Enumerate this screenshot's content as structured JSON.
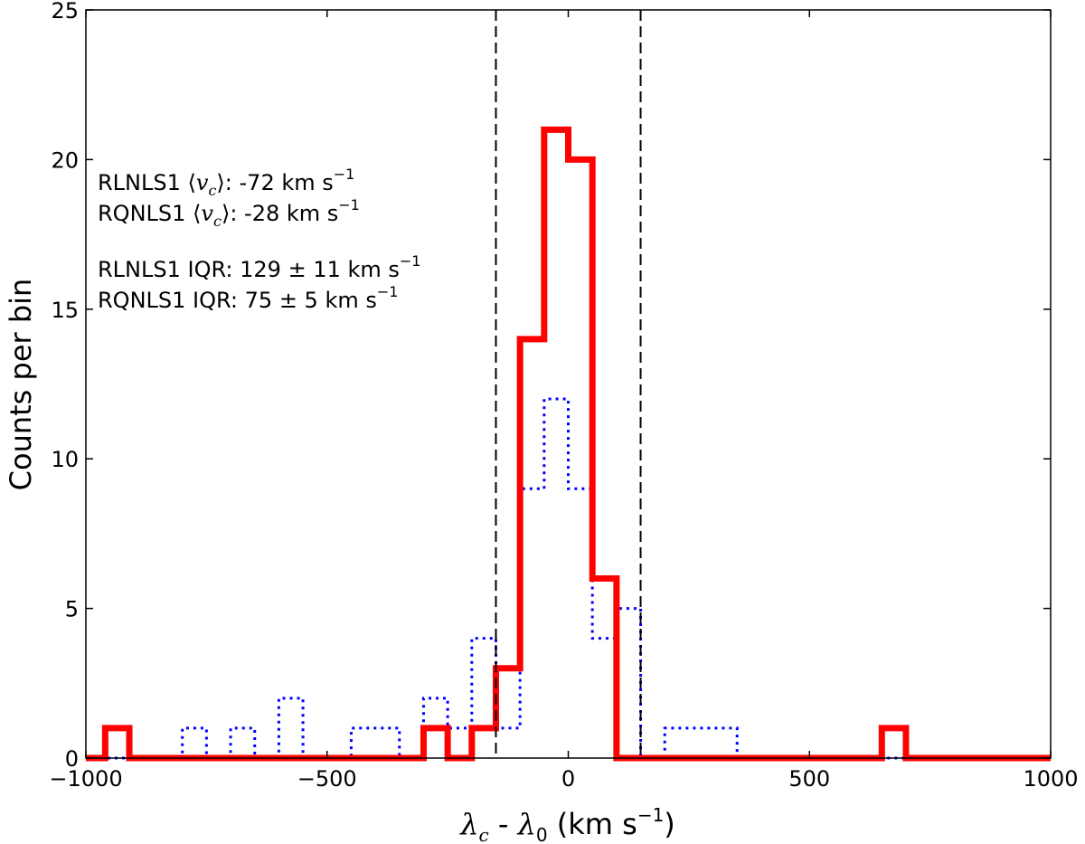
{
  "chart_data": {
    "type": "histogram",
    "title": "",
    "xlabel": {
      "sym": "λ",
      "sub1": "c",
      "mid": " - ",
      "sym2": "λ",
      "sub2": "0",
      "unit": " (km s",
      "exp": "−1",
      "close": ")"
    },
    "ylabel": "Counts per bin",
    "xlim": [
      -1000,
      1000
    ],
    "ylim": [
      0,
      25
    ],
    "xticks": [
      -1000,
      -500,
      0,
      500,
      1000
    ],
    "xtick_labels": [
      "−1000",
      "−500",
      "0",
      "500",
      "1000"
    ],
    "yticks": [
      0,
      5,
      10,
      15,
      20,
      25
    ],
    "ytick_labels": [
      "0",
      "5",
      "10",
      "15",
      "20",
      "25"
    ],
    "bin_edges": [
      -1000,
      -950,
      -900,
      -850,
      -800,
      -750,
      -700,
      -650,
      -600,
      -550,
      -500,
      -450,
      -400,
      -350,
      -300,
      -250,
      -200,
      -150,
      -100,
      -50,
      0,
      50,
      100,
      150,
      200,
      250,
      300,
      350,
      400,
      450,
      500,
      550,
      600,
      650,
      700,
      750,
      800,
      850,
      900,
      950,
      1000
    ],
    "series": [
      {
        "name": "RLNLS1",
        "style": "solid",
        "color": "#ff0000",
        "edges": [
          -1000,
          -960,
          -910,
          -300,
          -250,
          -200,
          -150,
          -100,
          -50,
          0,
          50,
          100,
          650,
          700,
          1000
        ],
        "values": [
          0,
          1,
          0,
          1,
          0,
          1,
          3,
          14,
          21,
          20,
          6,
          0,
          1,
          0
        ]
      },
      {
        "name": "RQNLS1",
        "style": "dotted",
        "color": "#0000ff",
        "edges": [
          -1000,
          -800,
          -750,
          -700,
          -650,
          -600,
          -550,
          -450,
          -350,
          -300,
          -250,
          -200,
          -150,
          -100,
          -50,
          0,
          50,
          100,
          150,
          200,
          350,
          1000
        ],
        "values": [
          0,
          1,
          0,
          1,
          0,
          2,
          0,
          1,
          0,
          2,
          1,
          4,
          1,
          9,
          12,
          9,
          4,
          5,
          0,
          1,
          0
        ]
      }
    ],
    "vlines": [
      -150,
      150
    ],
    "vline_color": "#000000",
    "annotations": [
      {
        "prefix": "RLNLS1 ",
        "sym": "v",
        "sub": "c",
        "suffix": ": -72 km s",
        "exp": "−1"
      },
      {
        "prefix": "RQNLS1 ",
        "sym": "v",
        "sub": "c",
        "suffix": ": -28 km s",
        "exp": "−1"
      },
      {
        "prefix": "RLNLS1 IQR: 129 ",
        "pm": "±",
        "suffix": " 11 km s",
        "exp": "−1"
      },
      {
        "prefix": "RQNLS1 IQR: 75 ",
        "pm": "±",
        "suffix": " 5 km s",
        "exp": "−1"
      }
    ]
  }
}
